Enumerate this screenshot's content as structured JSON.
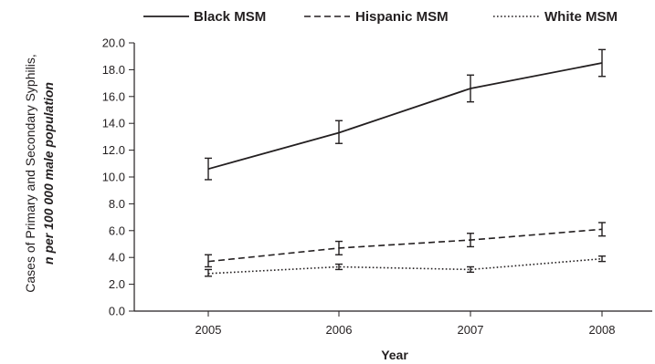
{
  "chart_data": {
    "type": "line",
    "title": "",
    "xlabel": "Year",
    "ylabel_line1": "Cases of Primary and Secondary Syphilis,",
    "ylabel_line2": "n per 100 000 male population",
    "x": [
      "2005",
      "2006",
      "2007",
      "2008"
    ],
    "yticks": [
      "0.0",
      "2.0",
      "4.0",
      "6.0",
      "8.0",
      "10.0",
      "12.0",
      "14.0",
      "16.0",
      "18.0",
      "20.0"
    ],
    "ylim": [
      0,
      20
    ],
    "grid": false,
    "legend_position": "top",
    "series": [
      {
        "name": "Black MSM",
        "style": "solid",
        "color": "#231f20",
        "values": [
          10.6,
          13.3,
          16.6,
          18.5
        ],
        "error_low": [
          9.8,
          12.5,
          15.6,
          17.5
        ],
        "error_high": [
          11.4,
          14.2,
          17.6,
          19.5
        ]
      },
      {
        "name": "Hispanic MSM",
        "style": "dashed",
        "color": "#231f20",
        "values": [
          3.7,
          4.7,
          5.3,
          6.1
        ],
        "error_low": [
          3.3,
          4.2,
          4.8,
          5.6
        ],
        "error_high": [
          4.2,
          5.2,
          5.8,
          6.6
        ]
      },
      {
        "name": "White MSM",
        "style": "dotted",
        "color": "#231f20",
        "values": [
          2.8,
          3.3,
          3.1,
          3.9
        ],
        "error_low": [
          2.6,
          3.1,
          2.9,
          3.7
        ],
        "error_high": [
          3.1,
          3.5,
          3.3,
          4.1
        ]
      }
    ]
  }
}
